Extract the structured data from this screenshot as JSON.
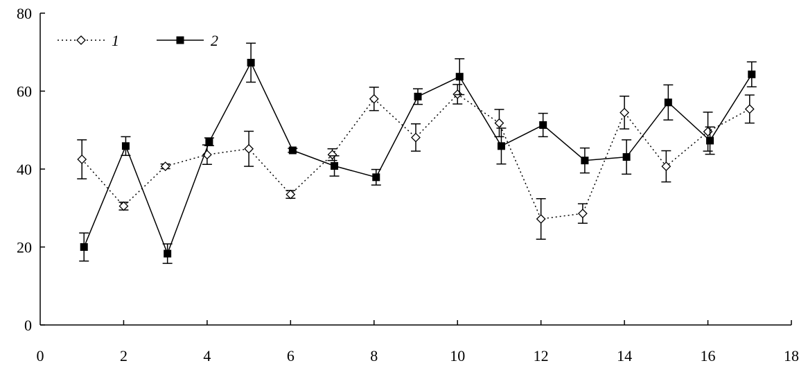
{
  "chart_data": {
    "type": "line",
    "title": "",
    "xlabel": "",
    "ylabel": "",
    "xlim": [
      0,
      18
    ],
    "ylim": [
      0,
      80
    ],
    "x_ticks": [
      0,
      2,
      4,
      6,
      8,
      10,
      12,
      14,
      16,
      18
    ],
    "y_ticks": [
      0,
      20,
      40,
      60,
      80
    ],
    "grid": false,
    "legend_position": "top-left",
    "x": [
      1,
      2,
      3,
      4,
      5,
      6,
      7,
      8,
      9,
      10,
      11,
      12,
      13,
      14,
      15,
      16,
      17
    ],
    "series": [
      {
        "name": "1",
        "marker": "open-diamond",
        "line": "dotted",
        "color": "#000000",
        "values": [
          42.5,
          30.5,
          40.7,
          43.7,
          45.2,
          33.5,
          43.7,
          58,
          48.1,
          59.2,
          51.8,
          27.2,
          28.6,
          54.5,
          40.7,
          49.6,
          55.4
        ],
        "errors": [
          5,
          1,
          0.6,
          2.5,
          4.5,
          1,
          1.5,
          3,
          3.5,
          2.5,
          3.5,
          5.2,
          2.5,
          4.2,
          4,
          5,
          3.6
        ]
      },
      {
        "name": "2",
        "marker": "filled-square",
        "line": "solid",
        "color": "#000000",
        "values": [
          20,
          45.9,
          18.3,
          47,
          67.3,
          44.8,
          40.8,
          37.9,
          58.6,
          63.7,
          45.9,
          51.3,
          42.2,
          43.1,
          57.1,
          47.3,
          64.3
        ],
        "errors": [
          3.6,
          2.4,
          2.5,
          1,
          5,
          0.5,
          2.6,
          2,
          2,
          4.6,
          4.6,
          3,
          3.2,
          4.4,
          4.5,
          3.5,
          3.2
        ]
      }
    ]
  }
}
